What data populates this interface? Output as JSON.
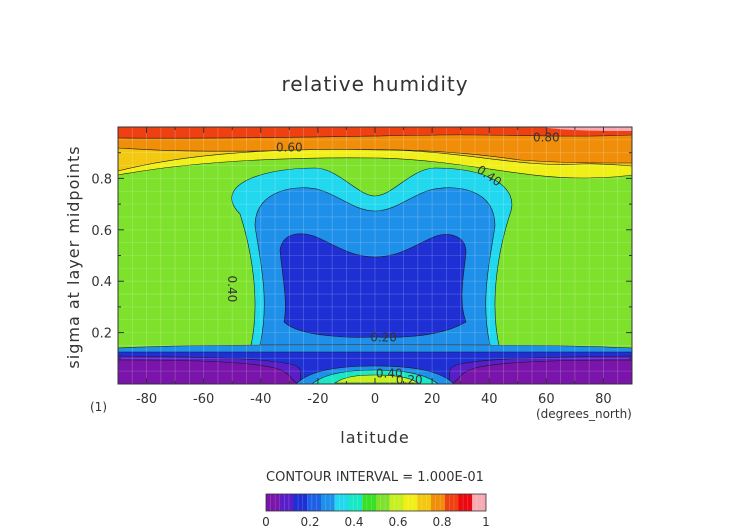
{
  "chart_data": {
    "type": "heatmap",
    "title": "relative humidity",
    "xlabel": "latitude",
    "ylabel": "sigma at layer midpoints",
    "x_unit": "(degrees_north)",
    "panel_index": "(1)",
    "xlim": [
      -90,
      90
    ],
    "ylim": [
      0,
      1
    ],
    "x_ticks": [
      -80,
      -60,
      -40,
      -20,
      0,
      20,
      40,
      60,
      80
    ],
    "y_ticks": [
      0.2,
      0.4,
      0.6,
      0.8
    ],
    "contour_note": "CONTOUR INTERVAL = 1.000E-01",
    "contour_labels": [
      {
        "text": "0.80",
        "lat": 60,
        "sigma": 0.96
      },
      {
        "text": "0.60",
        "lat": -30,
        "sigma": 0.92
      },
      {
        "text": "0.40",
        "lat": 40,
        "sigma": 0.81
      },
      {
        "text": "0.40",
        "lat": -50,
        "sigma": 0.37
      },
      {
        "text": "0.20",
        "lat": 3,
        "sigma": 0.18
      },
      {
        "text": "0.40",
        "lat": 5,
        "sigma": 0.04
      },
      {
        "text": "0.20",
        "lat": 12,
        "sigma": 0.015
      }
    ],
    "colorbar": {
      "colors": [
        "#7a14aa",
        "#5a1ec8",
        "#1e2fd4",
        "#1f5fe6",
        "#1f90ea",
        "#22d8ee",
        "#18e8c4",
        "#38e028",
        "#7ee22c",
        "#c8f020",
        "#f0f018",
        "#f2c810",
        "#f08e0a",
        "#ee4010",
        "#ec0810",
        "#f8aab4"
      ],
      "tick_labels": [
        "0",
        "0.2",
        "0.4",
        "0.6",
        "0.8",
        "1"
      ],
      "tick_values": [
        0,
        0.2,
        0.4,
        0.6,
        0.8,
        1
      ]
    }
  }
}
